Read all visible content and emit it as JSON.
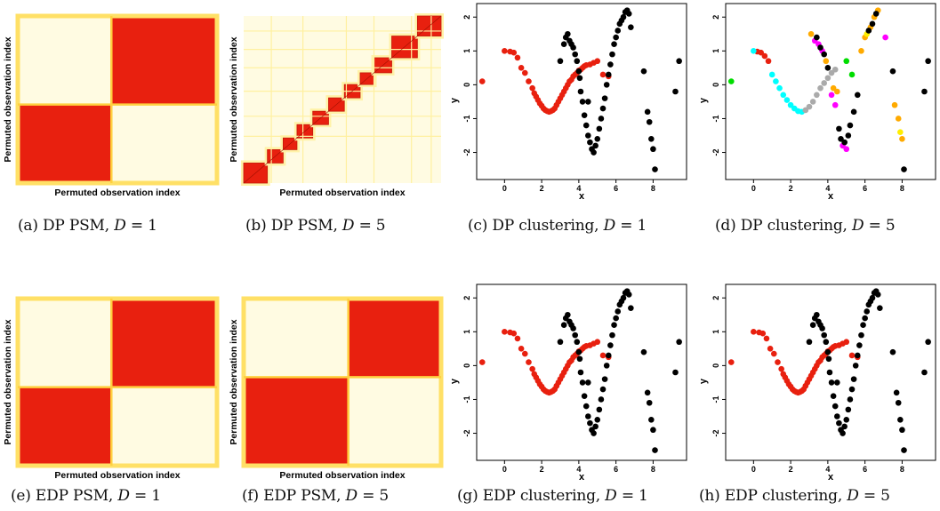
{
  "captions": {
    "a": {
      "prefix": "(a)  DP PSM, ",
      "var": "D",
      "eq": " = 1"
    },
    "b": {
      "prefix": "(b)  DP PSM, ",
      "var": "D",
      "eq": " = 5"
    },
    "c": {
      "prefix": "(c)  DP clustering, ",
      "var": "D",
      "eq": " = 1"
    },
    "d": {
      "prefix": "(d)  DP clustering, ",
      "var": "D",
      "eq": " = 5"
    },
    "e": {
      "prefix": "(e)  EDP PSM, ",
      "var": "D",
      "eq": " = 1"
    },
    "f": {
      "prefix": "(f)  EDP PSM, ",
      "var": "D",
      "eq": " = 5"
    },
    "g": {
      "prefix": "(g)  EDP clustering, ",
      "var": "D",
      "eq": " = 1"
    },
    "h": {
      "prefix": "(h)  EDP clustering, ",
      "var": "D",
      "eq": " = 5"
    }
  },
  "psm_axis_label": "Permuted observation index",
  "colors": {
    "high": "#e8200f",
    "low": "#fffbe2",
    "mid": "#ffd040",
    "edge": "#ffe066"
  },
  "chart_data": [
    {
      "id": "a",
      "type": "heatmap",
      "xlabel": "Permuted observation index",
      "ylabel": "Permuted observation index",
      "blocks": [
        [
          0,
          0.47
        ],
        [
          0.47,
          1.0
        ]
      ],
      "pattern": "two-block",
      "block_order": "anti-diagonal"
    },
    {
      "id": "b",
      "type": "heatmap",
      "xlabel": "Permuted observation index",
      "ylabel": "Permuted observation index",
      "blocks": [
        [
          0,
          0.12
        ],
        [
          0.12,
          0.2
        ],
        [
          0.2,
          0.27
        ],
        [
          0.27,
          0.35
        ],
        [
          0.35,
          0.43
        ],
        [
          0.43,
          0.51
        ],
        [
          0.51,
          0.59
        ],
        [
          0.59,
          0.66
        ],
        [
          0.66,
          0.75
        ],
        [
          0.75,
          0.88
        ],
        [
          0.88,
          1.0
        ]
      ],
      "pattern": "many-block"
    },
    {
      "id": "c",
      "type": "scatter",
      "xlabel": "x",
      "ylabel": "y",
      "xlim": [
        -1.5,
        9.8
      ],
      "ylim": [
        -2.8,
        2.4
      ],
      "xticks": [
        "0",
        "2",
        "4",
        "6",
        "8"
      ],
      "yticks": [
        "-2",
        "-1",
        "0",
        "1",
        "2"
      ],
      "series": [
        {
          "color": "#e8200f",
          "x": [
            -1.2,
            0.0,
            0.3,
            0.5,
            0.7,
            0.9,
            1.1,
            1.3,
            1.5,
            1.6,
            1.7,
            1.8,
            1.9,
            2.0,
            2.1,
            2.2,
            2.3,
            2.4,
            2.5,
            2.6,
            2.7,
            2.8,
            2.9,
            3.0,
            3.1,
            3.2,
            3.3,
            3.4,
            3.5,
            3.6,
            3.7,
            3.8,
            3.9,
            4.0,
            4.1,
            4.2,
            4.3,
            4.4,
            4.6,
            4.8,
            5.0,
            5.3,
            5.6
          ],
          "y": [
            0.1,
            1.0,
            0.98,
            0.95,
            0.8,
            0.5,
            0.35,
            0.1,
            -0.1,
            -0.25,
            -0.35,
            -0.45,
            -0.55,
            -0.62,
            -0.7,
            -0.75,
            -0.78,
            -0.8,
            -0.78,
            -0.75,
            -0.7,
            -0.6,
            -0.5,
            -0.4,
            -0.3,
            -0.2,
            -0.1,
            0.0,
            0.1,
            0.15,
            0.25,
            0.3,
            0.35,
            0.42,
            0.45,
            0.5,
            0.55,
            0.58,
            0.6,
            0.65,
            0.7,
            0.3,
            0.25
          ]
        },
        {
          "color": "#000000",
          "x": [
            3.2,
            3.3,
            3.4,
            3.5,
            3.6,
            3.7,
            3.8,
            3.9,
            4.0,
            4.05,
            4.1,
            4.2,
            4.3,
            4.4,
            4.5,
            4.6,
            4.7,
            4.8,
            4.9,
            5.0,
            5.1,
            5.2,
            5.3,
            5.4,
            5.5,
            5.6,
            5.7,
            5.8,
            5.9,
            6.0,
            6.1,
            6.2,
            6.3,
            6.4,
            6.5,
            6.6,
            6.7,
            6.8,
            3.0,
            4.5,
            7.5,
            7.7,
            7.8,
            7.9,
            8.0,
            8.1,
            9.2,
            9.4
          ],
          "y": [
            1.2,
            1.4,
            1.5,
            1.3,
            1.2,
            1.1,
            0.9,
            0.7,
            0.4,
            0.2,
            -0.2,
            -0.5,
            -0.9,
            -1.2,
            -1.5,
            -1.7,
            -1.9,
            -2.0,
            -1.8,
            -1.6,
            -1.3,
            -1.0,
            -0.7,
            -0.4,
            0.0,
            0.3,
            0.6,
            0.9,
            1.2,
            1.4,
            1.6,
            1.8,
            1.9,
            2.0,
            2.15,
            2.2,
            2.1,
            1.7,
            0.7,
            -0.5,
            0.4,
            -0.8,
            -1.1,
            -1.6,
            -1.9,
            -2.5,
            -0.2,
            0.7
          ]
        }
      ]
    },
    {
      "id": "d",
      "type": "scatter",
      "xlabel": "x",
      "ylabel": "y",
      "xlim": [
        -1.5,
        9.8
      ],
      "ylim": [
        -2.8,
        2.4
      ],
      "xticks": [
        "0",
        "2",
        "4",
        "6",
        "8"
      ],
      "yticks": [
        "-2",
        "-1",
        "0",
        "1",
        "2"
      ],
      "series": [
        {
          "color": "#e8200f",
          "x": [
            0.2,
            0.4,
            0.6,
            0.8
          ],
          "y": [
            0.98,
            0.95,
            0.85,
            0.7
          ]
        },
        {
          "color": "#00ffff",
          "x": [
            0.0,
            1.0,
            1.2,
            1.4,
            1.6,
            1.8,
            2.0,
            2.2,
            2.4,
            2.6
          ],
          "y": [
            1.0,
            0.3,
            0.1,
            -0.1,
            -0.3,
            -0.45,
            -0.6,
            -0.7,
            -0.78,
            -0.8
          ]
        },
        {
          "color": "#aaaaaa",
          "x": [
            2.8,
            3.0,
            3.2,
            3.4,
            3.6,
            3.8,
            4.0,
            4.2,
            4.4
          ],
          "y": [
            -0.75,
            -0.65,
            -0.5,
            -0.3,
            -0.1,
            0.05,
            0.2,
            0.35,
            0.45
          ]
        },
        {
          "color": "#00dd00",
          "x": [
            -1.2,
            5.0,
            5.3
          ],
          "y": [
            0.1,
            0.7,
            0.3
          ]
        },
        {
          "color": "#ff00ff",
          "x": [
            3.3,
            3.5,
            3.7,
            4.2,
            4.4,
            4.8,
            5.0,
            7.1
          ],
          "y": [
            1.3,
            1.2,
            1.0,
            -0.3,
            -0.6,
            -1.8,
            -1.9,
            1.4
          ]
        },
        {
          "color": "#ffaa00",
          "x": [
            3.1,
            3.9,
            4.3,
            4.5,
            5.8,
            6.0,
            6.3,
            6.5,
            6.7,
            7.6,
            7.8,
            8.0
          ],
          "y": [
            1.5,
            0.7,
            -0.1,
            -0.2,
            1.0,
            1.4,
            1.7,
            2.0,
            2.2,
            -0.6,
            -1.0,
            -1.6
          ]
        },
        {
          "color": "#ffee00",
          "x": [
            7.9,
            6.1
          ],
          "y": [
            -1.4,
            1.5
          ]
        },
        {
          "color": "#000000",
          "x": [
            3.4,
            3.6,
            3.8,
            4.0,
            4.6,
            4.7,
            4.9,
            5.1,
            5.2,
            5.4,
            5.6,
            6.2,
            6.4,
            6.6,
            7.5,
            8.1,
            9.2,
            9.4
          ],
          "y": [
            1.4,
            1.1,
            0.9,
            0.5,
            -1.3,
            -1.6,
            -1.7,
            -1.5,
            -1.2,
            -0.8,
            -0.3,
            1.6,
            1.8,
            2.1,
            0.4,
            -2.5,
            -0.2,
            0.7
          ]
        }
      ]
    },
    {
      "id": "e",
      "type": "heatmap",
      "xlabel": "Permuted observation index",
      "ylabel": "Permuted observation index",
      "blocks": [
        [
          0,
          0.47
        ],
        [
          0.47,
          1.0
        ]
      ],
      "pattern": "two-block",
      "block_order": "anti-diagonal"
    },
    {
      "id": "f",
      "type": "heatmap",
      "xlabel": "Permuted observation index",
      "ylabel": "Permuted observation index",
      "blocks": [
        [
          0,
          0.53
        ],
        [
          0.53,
          1.0
        ]
      ],
      "pattern": "two-block",
      "block_order": "anti-diagonal"
    },
    {
      "id": "g",
      "type": "scatter",
      "xlabel": "x",
      "ylabel": "y",
      "xlim": [
        -1.5,
        9.8
      ],
      "ylim": [
        -2.8,
        2.4
      ],
      "xticks": [
        "0",
        "2",
        "4",
        "6",
        "8"
      ],
      "yticks": [
        "-2",
        "-1",
        "0",
        "1",
        "2"
      ],
      "same_as": "c"
    },
    {
      "id": "h",
      "type": "scatter",
      "xlabel": "x",
      "ylabel": "y",
      "xlim": [
        -1.5,
        9.8
      ],
      "ylim": [
        -2.8,
        2.4
      ],
      "xticks": [
        "0",
        "2",
        "4",
        "6",
        "8"
      ],
      "yticks": [
        "-2",
        "-1",
        "0",
        "1",
        "2"
      ],
      "same_as": "c"
    }
  ]
}
